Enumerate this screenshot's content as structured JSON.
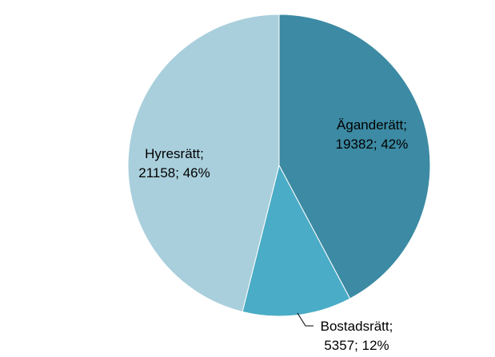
{
  "chart_data": {
    "type": "pie",
    "slices": [
      {
        "label": "Äganderätt",
        "value": 19382,
        "percent": "42%",
        "color": "#3C8AA3"
      },
      {
        "label": "Bostadsrätt",
        "value": 5357,
        "percent": "12%",
        "color": "#4AACC6"
      },
      {
        "label": "Hyresrätt",
        "value": 21158,
        "percent": "46%",
        "color": "#A9CFDC"
      }
    ],
    "start_angle_deg": 0,
    "direction": "clockwise",
    "legend": "none"
  },
  "labels": {
    "agande_line1": "Äganderätt;",
    "agande_line2": "19382; 42%",
    "bostad_line1": "Bostadsrätt;",
    "bostad_line2": "5357; 12%",
    "hyres_line1": "Hyresrätt;",
    "hyres_line2": "21158; 46%"
  }
}
